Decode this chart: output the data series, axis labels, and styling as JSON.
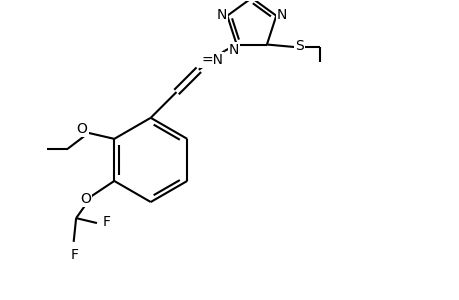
{
  "bg_color": "#ffffff",
  "line_color": "#000000",
  "lw": 1.5,
  "fs": 10,
  "figsize": [
    4.6,
    3.0
  ],
  "dpi": 100,
  "xlim": [
    0,
    9.2
  ],
  "ylim": [
    0,
    6.0
  ]
}
